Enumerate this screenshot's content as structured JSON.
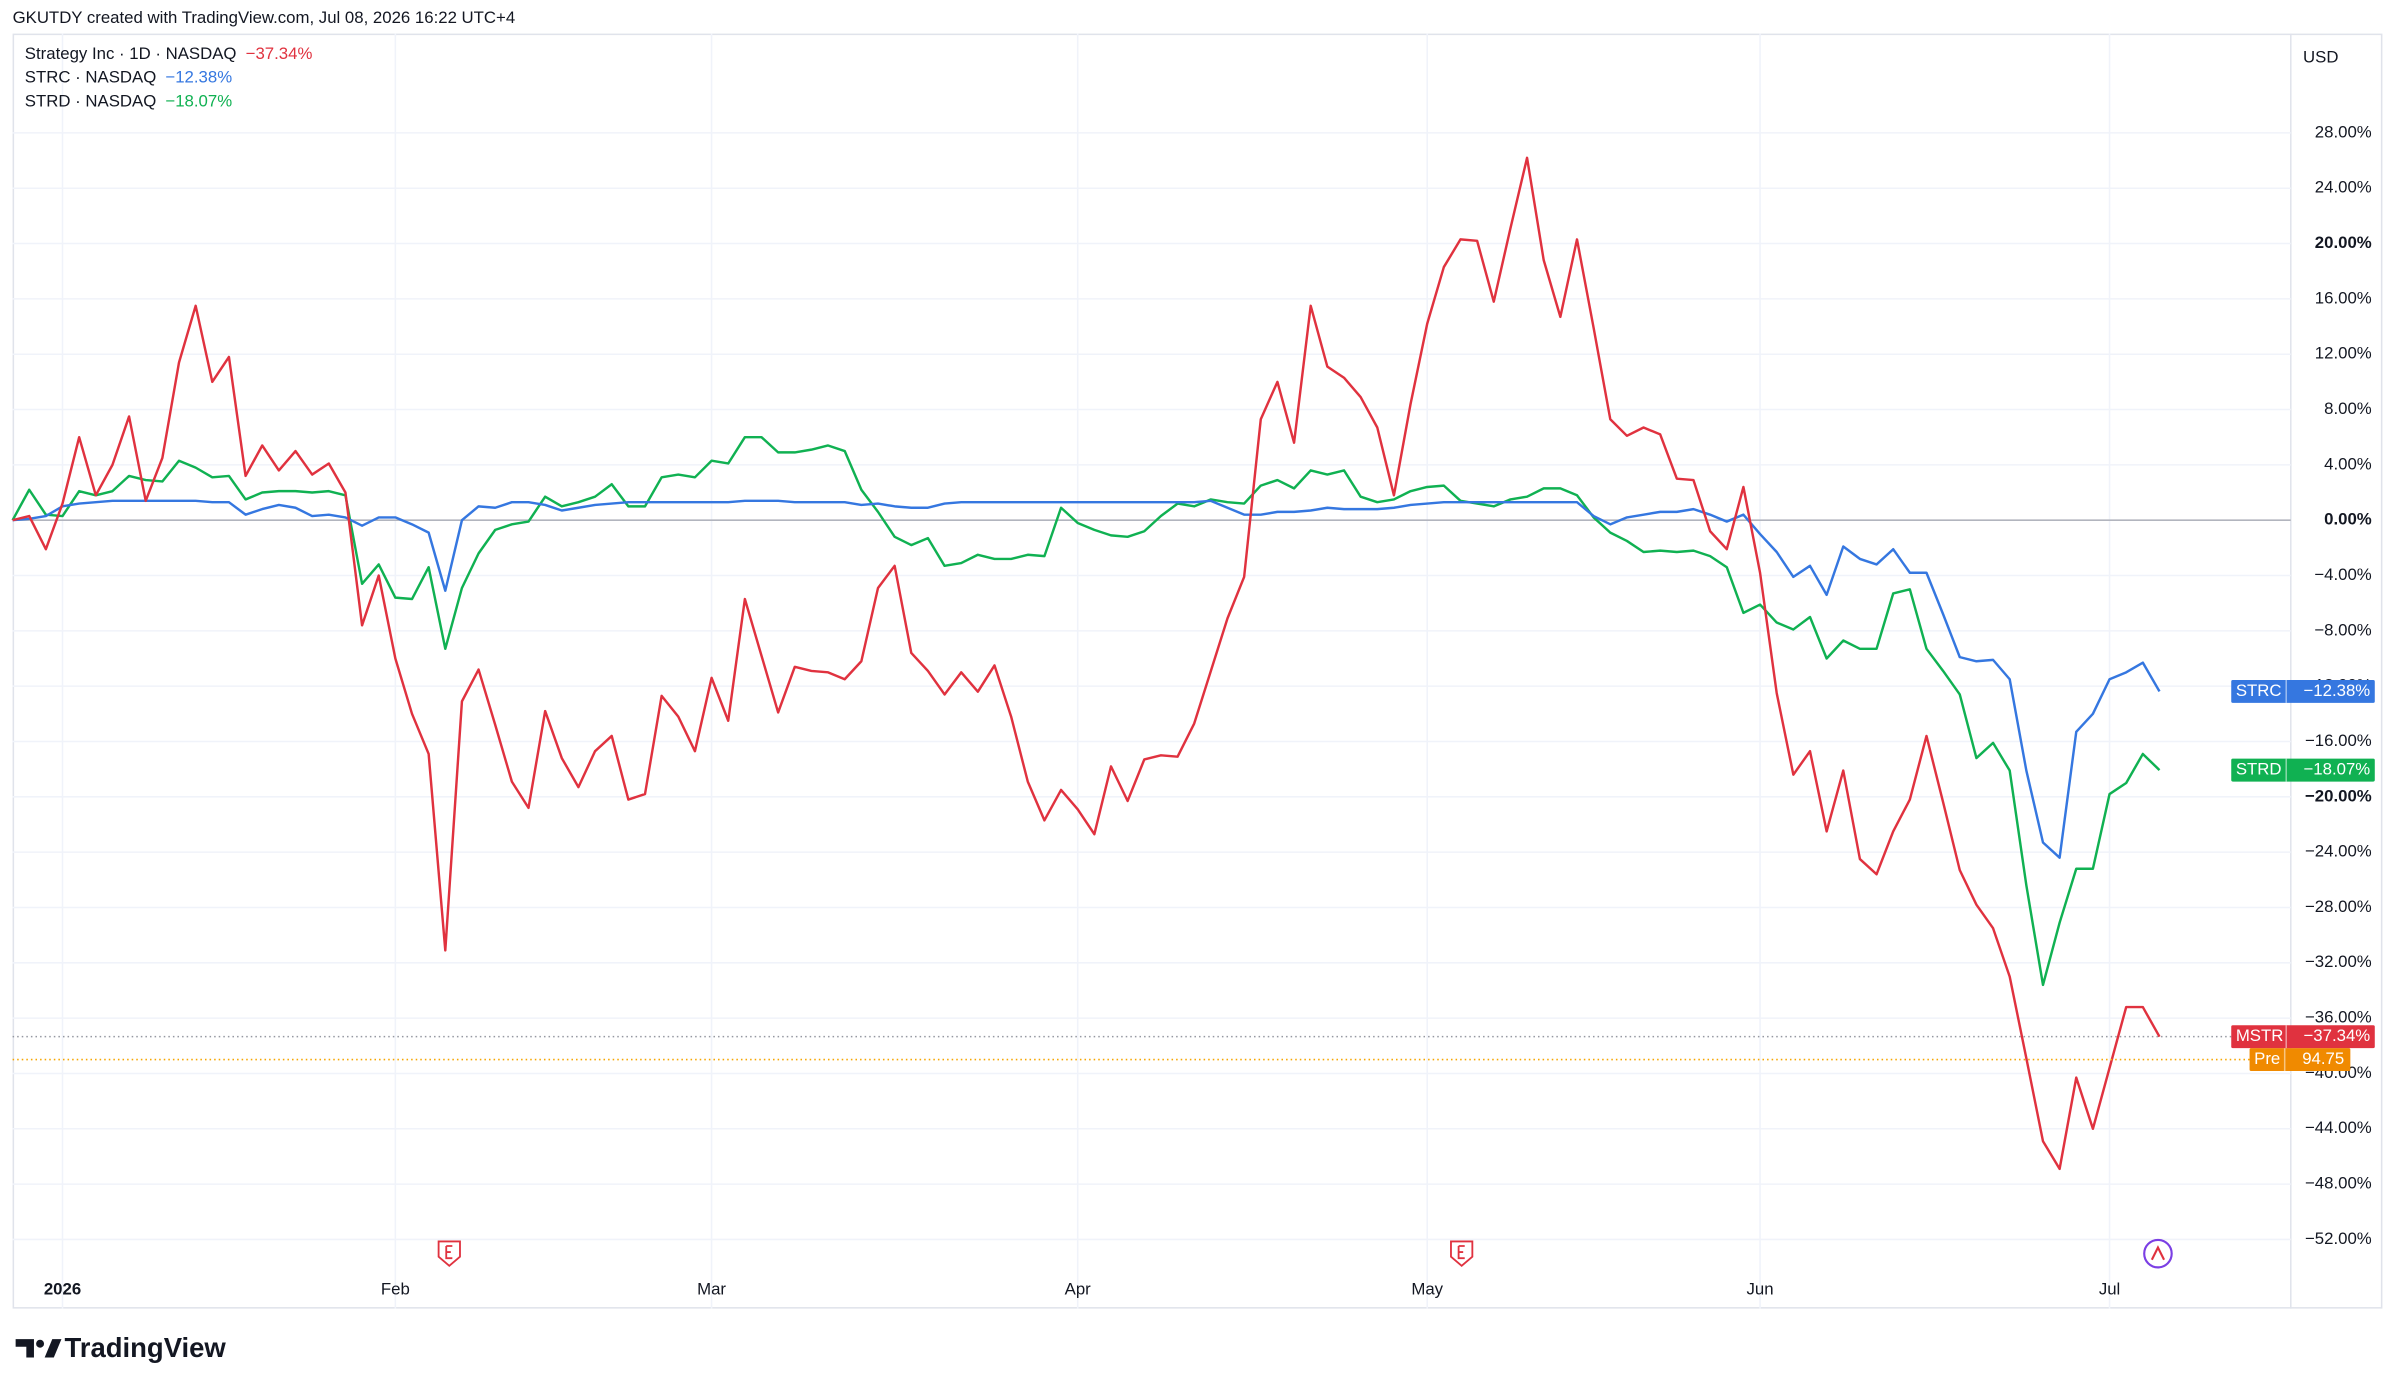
{
  "header": "GKUTDY created with TradingView.com, Jul 08, 2026 16:22 UTC+4",
  "currency": "USD",
  "brand": "TradingView",
  "premarket": {
    "label": "Pre",
    "value": 94.75
  },
  "chart_data": {
    "type": "line",
    "categories": [
      null,
      null,
      null,
      "2026",
      null,
      null,
      null,
      null,
      null,
      null,
      null,
      null,
      null,
      null,
      null,
      null,
      null,
      null,
      null,
      null,
      null,
      null,
      null,
      "Feb",
      null,
      null,
      null,
      null,
      null,
      null,
      null,
      null,
      null,
      null,
      null,
      null,
      null,
      null,
      null,
      null,
      null,
      null,
      "Mar",
      null,
      null,
      null,
      null,
      null,
      null,
      null,
      null,
      null,
      null,
      null,
      null,
      null,
      null,
      null,
      null,
      null,
      null,
      null,
      null,
      null,
      "Apr",
      null,
      null,
      null,
      null,
      null,
      null,
      null,
      null,
      null,
      null,
      null,
      null,
      null,
      null,
      null,
      null,
      null,
      null,
      null,
      null,
      "May",
      null,
      null,
      null,
      null,
      null,
      null,
      null,
      null,
      null,
      null,
      null,
      null,
      null,
      null,
      null,
      null,
      null,
      null,
      null,
      "Jun",
      null,
      null,
      null,
      null,
      null,
      null,
      null,
      null,
      null,
      null,
      null,
      null,
      null,
      null,
      null,
      null,
      null,
      null,
      null,
      null,
      "Jul",
      null,
      null,
      null
    ],
    "ylim": [
      -57,
      35.4
    ],
    "yticks": [
      {
        "value": 28,
        "label": "28.00%"
      },
      {
        "value": 24,
        "label": "24.00%"
      },
      {
        "value": 20,
        "label": "20.00%",
        "bold": true
      },
      {
        "value": 16,
        "label": "16.00%"
      },
      {
        "value": 12,
        "label": "12.00%"
      },
      {
        "value": 8,
        "label": "8.00%"
      },
      {
        "value": 4,
        "label": "4.00%"
      },
      {
        "value": 0,
        "label": "0.00%",
        "bold": true
      },
      {
        "value": -4,
        "label": "−4.00%"
      },
      {
        "value": -8,
        "label": "−8.00%"
      },
      {
        "value": -12,
        "label": "−12.00%"
      },
      {
        "value": -16,
        "label": "−16.00%"
      },
      {
        "value": -20,
        "label": "−20.00%",
        "bold": true
      },
      {
        "value": -24,
        "label": "−24.00%"
      },
      {
        "value": -28,
        "label": "−28.00%"
      },
      {
        "value": -32,
        "label": "−32.00%"
      },
      {
        "value": -36,
        "label": "−36.00%"
      },
      {
        "value": -40,
        "label": "−40.00%"
      },
      {
        "value": -44,
        "label": "−44.00%"
      },
      {
        "value": -48,
        "label": "−48.00%"
      },
      {
        "value": -52,
        "label": "−52.00%"
      }
    ],
    "grid": true,
    "series": [
      {
        "name": "Strategy Inc · 1D · NASDAQ",
        "ticker": "MSTR",
        "change_label": "−37.34%",
        "color": "#e0323f",
        "values": [
          0,
          0.3,
          -2.1,
          1.2,
          6.0,
          1.8,
          4.0,
          7.5,
          1.4,
          4.5,
          11.4,
          15.5,
          10.0,
          11.8,
          3.2,
          5.4,
          3.6,
          5.0,
          3.3,
          4.1,
          2.0,
          -7.6,
          -4.0,
          -10.0,
          -14.0,
          -16.9,
          -31.1,
          -13.1,
          -10.8,
          -14.8,
          -18.9,
          -20.8,
          -13.8,
          -17.2,
          -19.3,
          -16.7,
          -15.6,
          -20.2,
          -19.8,
          -12.7,
          -14.2,
          -16.7,
          -11.4,
          -14.5,
          -5.7,
          -9.8,
          -13.9,
          -10.6,
          -10.9,
          -11.0,
          -11.5,
          -10.2,
          -4.9,
          -3.3,
          -9.6,
          -10.9,
          -12.6,
          -11.0,
          -12.4,
          -10.5,
          -14.2,
          -18.9,
          -21.7,
          -19.5,
          -20.9,
          -22.7,
          -17.8,
          -20.3,
          -17.3,
          -17.0,
          -17.1,
          -14.7,
          -10.9,
          -7.1,
          -4.1,
          7.3,
          10.0,
          5.6,
          15.5,
          11.1,
          10.3,
          8.9,
          6.7,
          1.8,
          8.4,
          14.2,
          18.3,
          20.3,
          20.2,
          15.8,
          21.1,
          26.2,
          18.8,
          14.7,
          20.3,
          13.9,
          7.3,
          6.1,
          6.7,
          6.2,
          3.0,
          2.9,
          -0.8,
          -2.1,
          2.4,
          -3.8,
          -12.5,
          -18.4,
          -16.7,
          -22.5,
          -18.1,
          -24.5,
          -25.6,
          -22.5,
          -20.2,
          -15.6,
          -20.4,
          -25.3,
          -27.8,
          -29.5,
          -33.0,
          -38.9,
          -44.9,
          -46.9,
          -40.3,
          -44.0,
          -39.6,
          -35.2,
          -35.2,
          -37.34
        ]
      },
      {
        "name": "STRC · NASDAQ",
        "ticker": "STRC",
        "change_label": "−12.38%",
        "color": "#3577e0",
        "values": [
          0,
          0.1,
          0.3,
          1.0,
          1.2,
          1.3,
          1.4,
          1.4,
          1.4,
          1.4,
          1.4,
          1.4,
          1.3,
          1.3,
          0.4,
          0.8,
          1.1,
          0.9,
          0.3,
          0.4,
          0.2,
          -0.4,
          0.2,
          0.2,
          -0.3,
          -0.9,
          -5.1,
          0,
          1.0,
          0.9,
          1.3,
          1.3,
          1.1,
          0.7,
          0.9,
          1.1,
          1.2,
          1.3,
          1.3,
          1.3,
          1.3,
          1.3,
          1.3,
          1.3,
          1.4,
          1.4,
          1.4,
          1.3,
          1.3,
          1.3,
          1.3,
          1.1,
          1.2,
          1.0,
          0.9,
          0.9,
          1.2,
          1.3,
          1.3,
          1.3,
          1.3,
          1.3,
          1.3,
          1.3,
          1.3,
          1.3,
          1.3,
          1.3,
          1.3,
          1.3,
          1.3,
          1.3,
          1.4,
          0.9,
          0.4,
          0.4,
          0.6,
          0.6,
          0.7,
          0.9,
          0.8,
          0.8,
          0.8,
          0.9,
          1.1,
          1.2,
          1.3,
          1.3,
          1.3,
          1.3,
          1.3,
          1.3,
          1.3,
          1.3,
          1.3,
          0.3,
          -0.3,
          0.2,
          0.4,
          0.6,
          0.6,
          0.8,
          0.4,
          -0.1,
          0.4,
          -1.0,
          -2.3,
          -4.1,
          -3.3,
          -5.4,
          -1.9,
          -2.8,
          -3.2,
          -2.1,
          -3.8,
          -3.8,
          -6.8,
          -9.9,
          -10.2,
          -10.1,
          -11.5,
          -18.1,
          -23.3,
          -24.4,
          -15.3,
          -14.0,
          -11.5,
          -11.0,
          -10.3,
          -12.38
        ]
      },
      {
        "name": "STRD · NASDAQ",
        "ticker": "STRD",
        "change_label": "−18.07%",
        "color": "#10b152",
        "values": [
          0,
          2.2,
          0.4,
          0.3,
          2.1,
          1.8,
          2.1,
          3.2,
          2.9,
          2.8,
          4.3,
          3.8,
          3.1,
          3.2,
          1.5,
          2.0,
          2.1,
          2.1,
          2.0,
          2.1,
          1.8,
          -4.6,
          -3.2,
          -5.6,
          -5.7,
          -3.4,
          -9.3,
          -4.9,
          -2.4,
          -0.7,
          -0.3,
          -0.1,
          1.7,
          1.0,
          1.3,
          1.7,
          2.6,
          1.0,
          1.0,
          3.1,
          3.3,
          3.1,
          4.3,
          4.1,
          6.0,
          6.0,
          4.9,
          4.9,
          5.1,
          5.4,
          5.0,
          2.2,
          0.6,
          -1.2,
          -1.8,
          -1.3,
          -3.3,
          -3.1,
          -2.5,
          -2.8,
          -2.8,
          -2.5,
          -2.6,
          0.9,
          -0.2,
          -0.7,
          -1.1,
          -1.2,
          -0.8,
          0.3,
          1.2,
          1.0,
          1.5,
          1.3,
          1.2,
          2.5,
          2.9,
          2.3,
          3.6,
          3.3,
          3.6,
          1.7,
          1.3,
          1.5,
          2.1,
          2.4,
          2.5,
          1.4,
          1.2,
          1.0,
          1.5,
          1.7,
          2.3,
          2.3,
          1.8,
          0.2,
          -0.9,
          -1.5,
          -2.3,
          -2.2,
          -2.3,
          -2.2,
          -2.6,
          -3.4,
          -6.7,
          -6.1,
          -7.4,
          -7.9,
          -7.0,
          -10.0,
          -8.7,
          -9.3,
          -9.3,
          -5.3,
          -5.0,
          -9.3,
          -10.9,
          -12.6,
          -17.2,
          -16.1,
          -18.1,
          -26.4,
          -33.6,
          -29.1,
          -25.2,
          -25.2,
          -19.8,
          -19.0,
          -16.9,
          -18.07
        ]
      }
    ]
  }
}
